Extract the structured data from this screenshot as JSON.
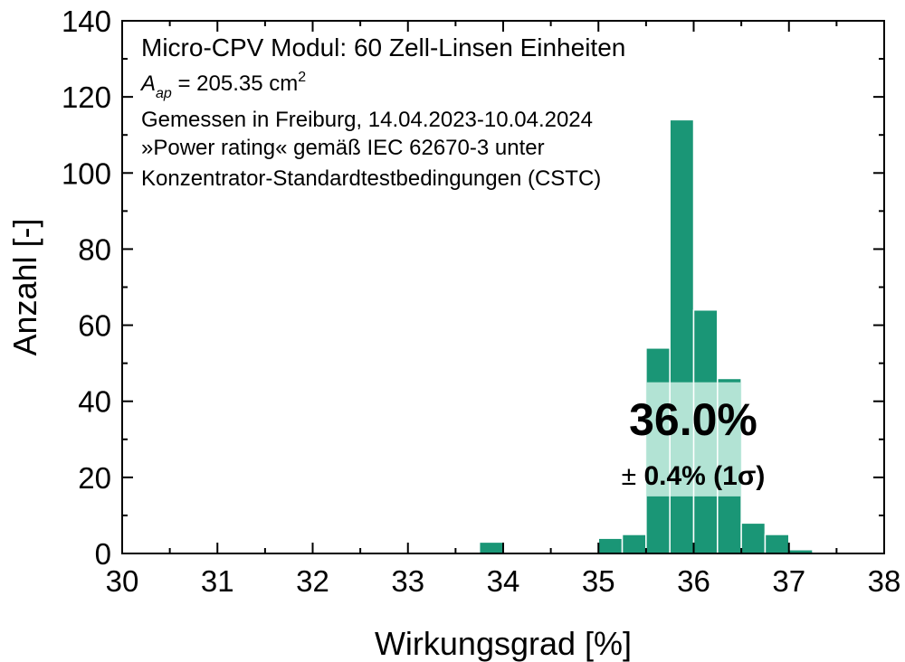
{
  "colors": {
    "bar_fill": "#1a9676",
    "bar_edge": "#ffffff",
    "band_fill": "#bfe9dc",
    "axis": "#000000"
  },
  "annotations": {
    "line1": "Micro-CPV Modul: 60 Zell-Linsen Einheiten",
    "aperture_symbol": "A",
    "aperture_subscript": "ap",
    "aperture_value": " = 205.35 cm",
    "aperture_superscript": "2",
    "line3": "Gemessen in Freiburg, 14.04.2023-10.04.2024",
    "line4": "»Power rating« gemäß IEC 62670-3 unter",
    "line5": "Konzentrator-Standardtestbedingungen (CSTC)"
  },
  "highlight": {
    "value_label": "36.0%",
    "pm_symbol": "±",
    "uncertainty_label": " 0.4% (1σ)",
    "band_x_range": [
      35.5,
      36.5
    ],
    "band_y_range": [
      15,
      45
    ]
  },
  "chart_data": {
    "type": "bar",
    "xlabel": "Wirkungsgrad [%]",
    "ylabel": "Anzahl [-]",
    "xlim": [
      30,
      38
    ],
    "ylim": [
      0,
      140
    ],
    "xticks": [
      30,
      31,
      32,
      33,
      34,
      35,
      36,
      37,
      38
    ],
    "yticks": [
      0,
      20,
      40,
      60,
      80,
      100,
      120,
      140
    ],
    "bin_width": 0.25,
    "bins": [
      {
        "x0": 33.75,
        "x1": 34.0,
        "count": 3
      },
      {
        "x0": 35.0,
        "x1": 35.25,
        "count": 4
      },
      {
        "x0": 35.25,
        "x1": 35.5,
        "count": 5
      },
      {
        "x0": 35.5,
        "x1": 35.75,
        "count": 54
      },
      {
        "x0": 35.75,
        "x1": 36.0,
        "count": 114
      },
      {
        "x0": 36.0,
        "x1": 36.25,
        "count": 64
      },
      {
        "x0": 36.25,
        "x1": 36.5,
        "count": 46
      },
      {
        "x0": 36.5,
        "x1": 36.75,
        "count": 8
      },
      {
        "x0": 36.75,
        "x1": 37.0,
        "count": 5
      },
      {
        "x0": 37.0,
        "x1": 37.25,
        "count": 1
      }
    ],
    "grid": false,
    "legend": "none"
  }
}
